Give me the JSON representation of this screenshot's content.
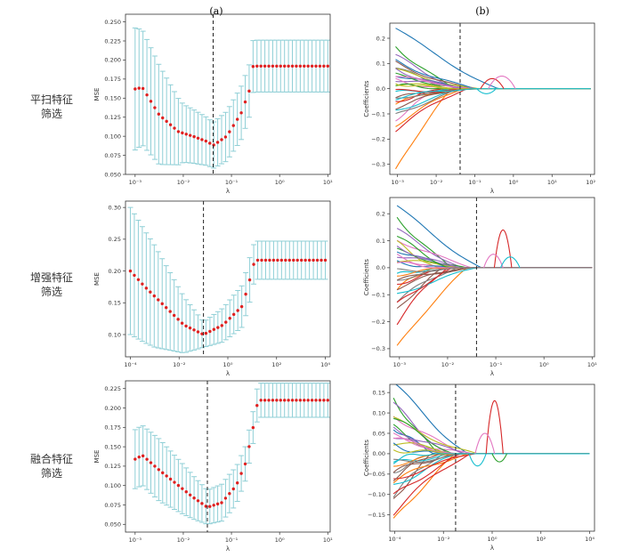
{
  "panel_headers": [
    "(a)",
    "(b)"
  ],
  "rows": [
    {
      "label_lines": [
        "平扫特征",
        "筛选"
      ]
    },
    {
      "label_lines": [
        "增强特征",
        "筛选"
      ]
    },
    {
      "label_lines": [
        "融合特征",
        "筛选"
      ]
    }
  ],
  "colors": {
    "mean_points": "#e02020",
    "error_bars": "#8fcfd6",
    "cutoff_line": "#222222",
    "path_colors": [
      "#1f77b4",
      "#ff7f0e",
      "#2ca02c",
      "#d62728",
      "#9467bd",
      "#8c564b",
      "#e377c2",
      "#7f7f7f",
      "#bcbd22",
      "#17becf"
    ]
  },
  "chart_data": [
    {
      "type": "scatter",
      "panel": "a",
      "row": 0,
      "xlabel": "λ",
      "ylabel": "MSE",
      "x_scale": "log",
      "xlim": [
        -3.2,
        1.05
      ],
      "ylim": [
        0.05,
        0.26
      ],
      "x_ticks": [
        {
          "v": -3,
          "label": "10⁻³"
        },
        {
          "v": -2,
          "label": "10⁻²"
        },
        {
          "v": -1,
          "label": "10⁻¹"
        },
        {
          "v": 0,
          "label": "10⁰"
        },
        {
          "v": 1,
          "label": "10¹"
        }
      ],
      "y_ticks": [
        0.05,
        0.075,
        0.1,
        0.125,
        0.15,
        0.175,
        0.2,
        0.225,
        0.25
      ],
      "y_tick_labels": [
        "0.050",
        "0.075",
        "0.100",
        "0.125",
        "0.150",
        "0.175",
        "0.200",
        "0.225",
        "0.250"
      ],
      "cutoff_log_lambda": -1.38,
      "cutoff_style": "dashed",
      "curve": {
        "x_start": -3,
        "x_end": 1,
        "n": 50,
        "knots": [
          [
            -3.0,
            0.162
          ],
          [
            -2.85,
            0.164
          ],
          [
            -2.5,
            0.128
          ],
          [
            -2.1,
            0.106
          ],
          [
            -1.8,
            0.1
          ],
          [
            -1.5,
            0.093
          ],
          [
            -1.38,
            0.088
          ],
          [
            -1.1,
            0.1
          ],
          [
            -0.8,
            0.13
          ],
          [
            -0.6,
            0.165
          ],
          [
            -0.55,
            0.192
          ],
          [
            1.0,
            0.192
          ]
        ],
        "err_knots": [
          [
            -3.0,
            0.08
          ],
          [
            -2.5,
            0.065
          ],
          [
            -2.0,
            0.038
          ],
          [
            -1.4,
            0.03
          ],
          [
            -0.8,
            0.035
          ],
          [
            -0.55,
            0.034
          ],
          [
            1.0,
            0.034
          ]
        ]
      }
    },
    {
      "type": "line",
      "panel": "b",
      "row": 0,
      "xlabel": "λ",
      "ylabel": "Coefficients",
      "x_scale": "log",
      "xlim": [
        -3.2,
        2.1
      ],
      "ylim": [
        -0.34,
        0.26
      ],
      "x_ticks": [
        {
          "v": -3,
          "label": "10⁻³"
        },
        {
          "v": -2,
          "label": "10⁻²"
        },
        {
          "v": -1,
          "label": "10⁻¹"
        },
        {
          "v": 0,
          "label": "10⁰"
        },
        {
          "v": 1,
          "label": "10¹"
        },
        {
          "v": 2,
          "label": "10²"
        }
      ],
      "y_ticks": [
        -0.3,
        -0.2,
        -0.1,
        0.0,
        0.1,
        0.2
      ],
      "y_tick_labels": [
        "−0.3",
        "−0.2",
        "−0.1",
        "0.0",
        "0.1",
        "0.2"
      ],
      "cutoff_log_lambda": -1.38,
      "cutoff_style": "dashed",
      "x_end_paths": 2.0,
      "paths": [
        [
          0.24,
          -0.4
        ],
        [
          -0.33,
          -1.6
        ],
        [
          0.17,
          -1.5
        ],
        [
          -0.16,
          -1.2
        ],
        [
          0.13,
          -1.4
        ],
        [
          0.1,
          -1.1
        ],
        [
          -0.12,
          -1.9
        ],
        [
          0.09,
          -1.7
        ],
        [
          0.07,
          -0.9
        ],
        [
          -0.09,
          -1.3
        ],
        [
          0.06,
          -1.2
        ],
        [
          -0.06,
          -1.5
        ],
        [
          0.05,
          -1.1
        ],
        [
          -0.05,
          -1.8
        ],
        [
          0.04,
          -1.0
        ],
        [
          -0.04,
          -1.4
        ],
        [
          0.03,
          -1.6
        ],
        [
          -0.03,
          -0.8
        ],
        [
          0.02,
          -1.2
        ],
        [
          -0.02,
          -1.5
        ],
        [
          0.11,
          -1.0
        ],
        [
          -0.14,
          -1.3
        ],
        [
          0.015,
          -1.9
        ],
        [
          -0.015,
          -1.1
        ],
        [
          0.08,
          -1.45
        ],
        [
          -0.07,
          -1.25
        ],
        [
          0.045,
          -0.95
        ],
        [
          -0.11,
          -1.35
        ],
        [
          0.025,
          -1.75
        ],
        [
          -0.035,
          -1.05
        ]
      ],
      "bumps": [
        [
          -0.55,
          0.04,
          0.3
        ],
        [
          -0.3,
          0.05,
          0.35
        ],
        [
          -0.7,
          -0.02,
          0.25
        ]
      ]
    },
    {
      "type": "scatter",
      "panel": "a",
      "row": 1,
      "xlabel": "λ",
      "ylabel": "MSE",
      "x_scale": "log",
      "xlim": [
        -4.2,
        4.2
      ],
      "ylim": [
        0.065,
        0.31
      ],
      "x_ticks": [
        {
          "v": -4,
          "label": "10⁻⁴"
        },
        {
          "v": -2,
          "label": "10⁻²"
        },
        {
          "v": 0,
          "label": "10⁰"
        },
        {
          "v": 2,
          "label": "10²"
        },
        {
          "v": 4,
          "label": "10⁴"
        }
      ],
      "y_ticks": [
        0.1,
        0.15,
        0.2,
        0.25,
        0.3
      ],
      "y_tick_labels": [
        "0.10",
        "0.15",
        "0.20",
        "0.25",
        "0.30"
      ],
      "cutoff_log_lambda": -1.0,
      "cutoff_style": "dashed",
      "curve": {
        "x_start": -4,
        "x_end": 4,
        "n": 50,
        "knots": [
          [
            -4.0,
            0.2
          ],
          [
            -3.4,
            0.175
          ],
          [
            -2.6,
            0.145
          ],
          [
            -1.8,
            0.115
          ],
          [
            -1.0,
            0.1
          ],
          [
            -0.2,
            0.115
          ],
          [
            0.6,
            0.145
          ],
          [
            1.0,
            0.2
          ],
          [
            1.1,
            0.217
          ],
          [
            4.0,
            0.217
          ]
        ],
        "err_knots": [
          [
            -4.0,
            0.1
          ],
          [
            -3.0,
            0.08
          ],
          [
            -2.0,
            0.05
          ],
          [
            -1.0,
            0.02
          ],
          [
            0.2,
            0.03
          ],
          [
            0.9,
            0.035
          ],
          [
            1.1,
            0.03
          ],
          [
            4.0,
            0.03
          ]
        ]
      }
    },
    {
      "type": "line",
      "panel": "b",
      "row": 1,
      "xlabel": "λ",
      "ylabel": "Coefficients",
      "x_scale": "log",
      "xlim": [
        -3.2,
        1.05
      ],
      "ylim": [
        -0.33,
        0.26
      ],
      "x_ticks": [
        {
          "v": -3,
          "label": "10⁻³"
        },
        {
          "v": -2,
          "label": "10⁻²"
        },
        {
          "v": -1,
          "label": "10⁻¹"
        },
        {
          "v": 0,
          "label": "10⁰"
        },
        {
          "v": 1,
          "label": "10¹"
        }
      ],
      "y_ticks": [
        -0.3,
        -0.2,
        -0.1,
        0.0,
        0.1,
        0.2
      ],
      "y_tick_labels": [
        "−0.3",
        "−0.2",
        "−0.1",
        "0.0",
        "0.1",
        "0.2"
      ],
      "cutoff_log_lambda": -1.4,
      "cutoff_style": "dashed",
      "x_end_paths": 1.0,
      "paths": [
        [
          0.23,
          -1.3
        ],
        [
          -0.3,
          -1.6
        ],
        [
          0.19,
          -1.9
        ],
        [
          -0.2,
          -2.0
        ],
        [
          0.14,
          -1.7
        ],
        [
          -0.16,
          -2.1
        ],
        [
          0.11,
          -1.5
        ],
        [
          -0.12,
          -1.8
        ],
        [
          0.09,
          -2.2
        ],
        [
          -0.1,
          -1.4
        ],
        [
          0.07,
          -1.9
        ],
        [
          -0.08,
          -2.3
        ],
        [
          0.06,
          -1.6
        ],
        [
          -0.06,
          -2.0
        ],
        [
          0.05,
          -1.7
        ],
        [
          -0.05,
          -1.5
        ],
        [
          0.04,
          -2.1
        ],
        [
          -0.04,
          -1.8
        ],
        [
          0.03,
          -1.6
        ],
        [
          -0.03,
          -2.2
        ],
        [
          0.02,
          -1.9
        ],
        [
          -0.02,
          -1.7
        ],
        [
          0.12,
          -2.0
        ],
        [
          -0.14,
          -1.9
        ],
        [
          0.08,
          -1.75
        ],
        [
          -0.07,
          -1.65
        ],
        [
          0.015,
          -2.05
        ],
        [
          -0.015,
          -1.55
        ]
      ],
      "bumps": [
        [
          -0.85,
          0.14,
          0.18
        ],
        [
          -1.05,
          0.05,
          0.2
        ],
        [
          -0.7,
          0.04,
          0.2
        ]
      ]
    },
    {
      "type": "scatter",
      "panel": "a",
      "row": 2,
      "xlabel": "λ",
      "ylabel": "MSE",
      "x_scale": "log",
      "xlim": [
        -3.2,
        1.05
      ],
      "ylim": [
        0.04,
        0.235
      ],
      "x_ticks": [
        {
          "v": -3,
          "label": "10⁻³"
        },
        {
          "v": -2,
          "label": "10⁻²"
        },
        {
          "v": -1,
          "label": "10⁻¹"
        },
        {
          "v": 0,
          "label": "10⁰"
        },
        {
          "v": 1,
          "label": "10¹"
        }
      ],
      "y_ticks": [
        0.05,
        0.075,
        0.1,
        0.125,
        0.15,
        0.175,
        0.2,
        0.225
      ],
      "y_tick_labels": [
        "0.050",
        "0.075",
        "0.100",
        "0.125",
        "0.150",
        "0.175",
        "0.200",
        "0.225"
      ],
      "cutoff_log_lambda": -1.5,
      "cutoff_style": "dashed",
      "curve": {
        "x_start": -3,
        "x_end": 1,
        "n": 50,
        "knots": [
          [
            -3.0,
            0.134
          ],
          [
            -2.85,
            0.139
          ],
          [
            -2.5,
            0.12
          ],
          [
            -2.1,
            0.1
          ],
          [
            -1.8,
            0.085
          ],
          [
            -1.5,
            0.072
          ],
          [
            -1.2,
            0.078
          ],
          [
            -0.9,
            0.1
          ],
          [
            -0.7,
            0.13
          ],
          [
            -0.55,
            0.175
          ],
          [
            -0.45,
            0.21
          ],
          [
            1.0,
            0.21
          ]
        ],
        "err_knots": [
          [
            -3.0,
            0.038
          ],
          [
            -2.5,
            0.04
          ],
          [
            -2.0,
            0.032
          ],
          [
            -1.5,
            0.022
          ],
          [
            -1.0,
            0.025
          ],
          [
            -0.5,
            0.02
          ],
          [
            -0.45,
            0.022
          ],
          [
            1.0,
            0.022
          ]
        ]
      }
    },
    {
      "type": "line",
      "panel": "b",
      "row": 2,
      "xlabel": "λ",
      "ylabel": "Coefficients",
      "x_scale": "log",
      "xlim": [
        -4.2,
        4.2
      ],
      "ylim": [
        -0.19,
        0.17
      ],
      "x_ticks": [
        {
          "v": -4,
          "label": "10⁻⁴"
        },
        {
          "v": -2,
          "label": "10⁻²"
        },
        {
          "v": 0,
          "label": "10⁰"
        },
        {
          "v": 2,
          "label": "10²"
        },
        {
          "v": 4,
          "label": "10⁴"
        }
      ],
      "y_ticks": [
        -0.15,
        -0.1,
        -0.05,
        0.0,
        0.05,
        0.1,
        0.15
      ],
      "y_tick_labels": [
        "−0.15",
        "−0.10",
        "−0.05",
        "0.00",
        "0.05",
        "0.10",
        "0.15"
      ],
      "cutoff_log_lambda": -1.5,
      "cutoff_style": "dashed",
      "x_end_paths": 4.0,
      "paths": [
        [
          0.175,
          -1.0
        ],
        [
          -0.17,
          -1.5
        ],
        [
          0.14,
          -2.2
        ],
        [
          -0.14,
          -0.9
        ],
        [
          0.12,
          -1.8
        ],
        [
          -0.12,
          -2.5
        ],
        [
          0.1,
          -1.2
        ],
        [
          -0.1,
          -2.0
        ],
        [
          0.08,
          -0.6
        ],
        [
          -0.08,
          -1.4
        ],
        [
          0.07,
          -2.4
        ],
        [
          -0.07,
          -1.0
        ],
        [
          0.06,
          -1.9
        ],
        [
          -0.06,
          -0.7
        ],
        [
          0.05,
          -2.1
        ],
        [
          -0.05,
          -1.6
        ],
        [
          0.04,
          -0.8
        ],
        [
          -0.04,
          -2.3
        ],
        [
          0.03,
          -1.3
        ],
        [
          -0.03,
          -1.7
        ],
        [
          0.02,
          -2.0
        ],
        [
          -0.02,
          -1.1
        ],
        [
          0.09,
          -1.6
        ],
        [
          -0.11,
          -1.3
        ],
        [
          0.065,
          -1.1
        ],
        [
          -0.055,
          -2.15
        ],
        [
          0.035,
          -1.45
        ],
        [
          -0.025,
          -0.95
        ],
        [
          0.015,
          -1.85
        ],
        [
          -0.015,
          -2.35
        ]
      ],
      "bumps": [
        [
          0.1,
          0.13,
          0.35
        ],
        [
          -0.3,
          0.05,
          0.4
        ],
        [
          -0.6,
          -0.03,
          0.35
        ],
        [
          0.3,
          -0.02,
          0.3
        ]
      ]
    }
  ]
}
